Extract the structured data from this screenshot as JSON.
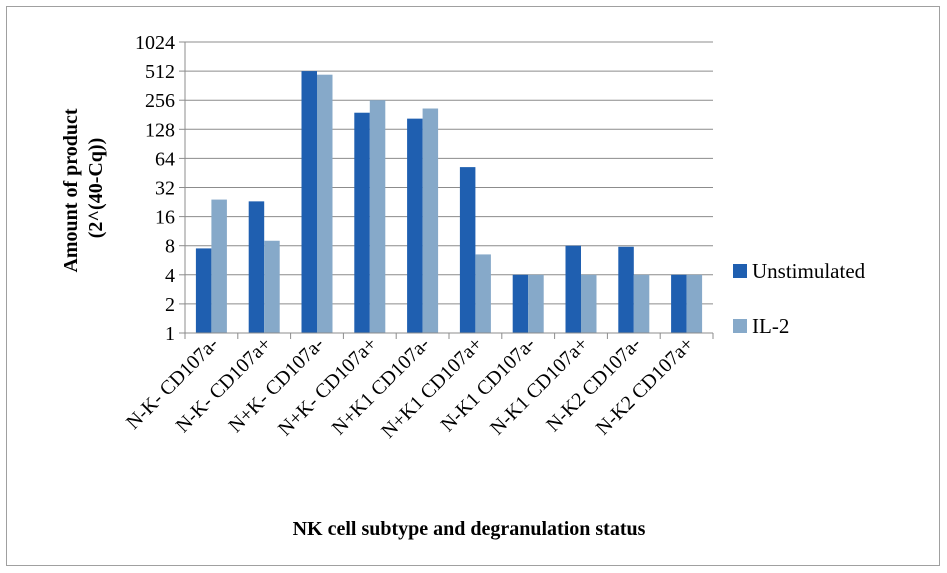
{
  "chart_data": {
    "type": "bar",
    "title": "",
    "xlabel": "NK cell subtype and degranulation status",
    "ylabel_line1": "Amount of product",
    "ylabel_line2": "(2^(40-Cq))",
    "y_scale": "log2",
    "ylim": [
      1,
      1024
    ],
    "yticks": [
      1,
      2,
      4,
      8,
      16,
      32,
      64,
      128,
      256,
      512,
      1024
    ],
    "grid": true,
    "legend_position": "right",
    "categories": [
      "N-K- CD107a-",
      "N-K- CD107a+",
      "N+K- CD107a-",
      "N+K- CD107a+",
      "N+K1 CD107a-",
      "N+K1 CD107a+",
      "N-K1 CD107a-",
      "N-K1 CD107a+",
      "N-K2 CD107a-",
      "N-K2 CD107a+"
    ],
    "series": [
      {
        "name": "Unstimulated",
        "color": "#1f5fb0",
        "values": [
          7.5,
          23,
          512,
          190,
          165,
          52,
          4,
          8,
          7.8,
          4
        ]
      },
      {
        "name": "IL-2",
        "color": "#86a9c9",
        "values": [
          24,
          9,
          470,
          256,
          210,
          6.5,
          4,
          4,
          4,
          4
        ]
      }
    ]
  }
}
